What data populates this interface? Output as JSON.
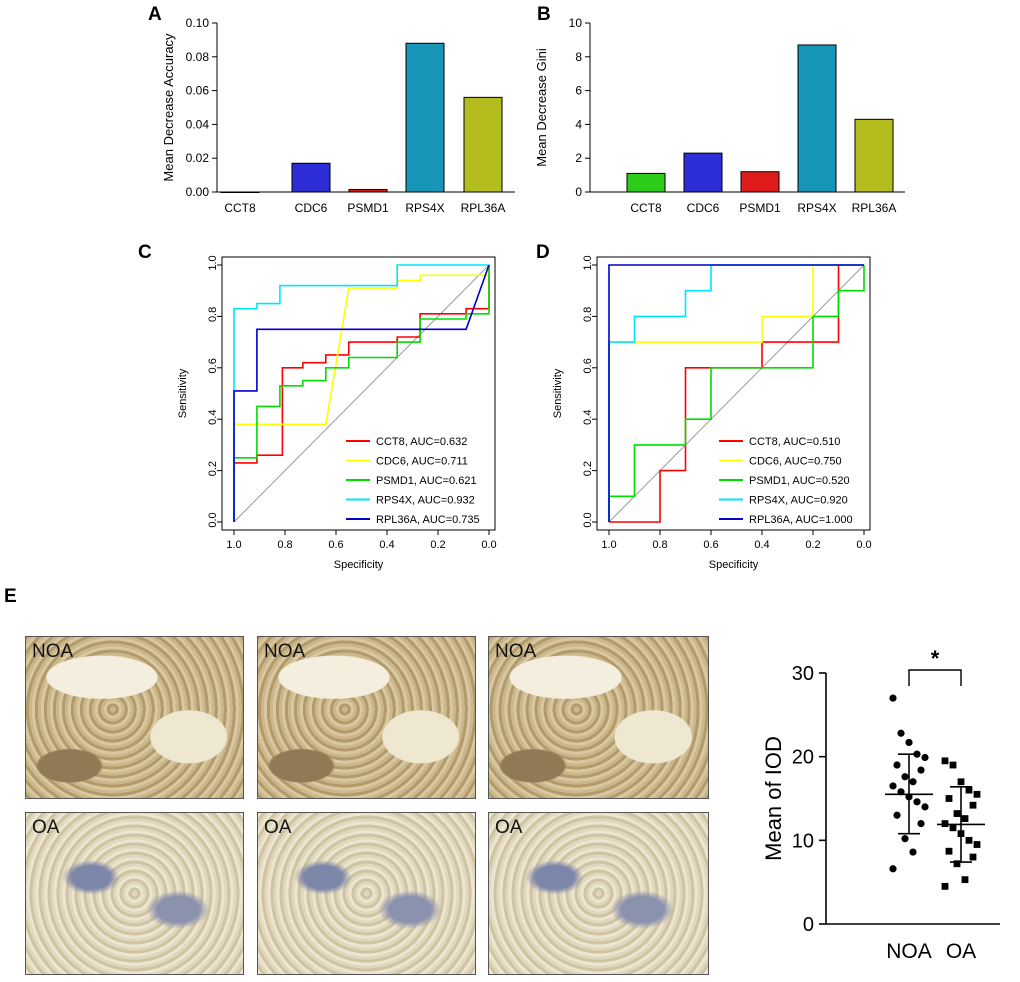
{
  "panels": {
    "a": "A",
    "b": "B",
    "c": "C",
    "d": "D",
    "e": "E"
  },
  "colors": {
    "green": "#2ecc1a",
    "blue": "#2d2dd6",
    "red": "#e01b1b",
    "teal": "#1796b8",
    "olive": "#b3bd1e"
  },
  "chart_data": [
    {
      "id": "A",
      "type": "bar",
      "categories": [
        "CCT8",
        "CDC6",
        "PSMD1",
        "RPS4X",
        "RPL36A"
      ],
      "values": [
        0.0,
        0.017,
        0.0015,
        0.088,
        0.056
      ],
      "colors": [
        "#2ecc1a",
        "#2d2dd6",
        "#e01b1b",
        "#1796b8",
        "#b3bd1e"
      ],
      "ylabel": "Mean Decrease Accuracy",
      "ylim": [
        0,
        0.1
      ],
      "yticks": [
        "0.00",
        "0.02",
        "0.04",
        "0.06",
        "0.08",
        "0.10"
      ]
    },
    {
      "id": "B",
      "type": "bar",
      "categories": [
        "CCT8",
        "CDC6",
        "PSMD1",
        "RPS4X",
        "RPL36A"
      ],
      "values": [
        1.1,
        2.3,
        1.2,
        8.7,
        4.3
      ],
      "colors": [
        "#2ecc1a",
        "#2d2dd6",
        "#e01b1b",
        "#1796b8",
        "#b3bd1e"
      ],
      "ylabel": "Mean Decrease Gini",
      "ylim": [
        0,
        10
      ],
      "yticks": [
        "0",
        "2",
        "4",
        "6",
        "8",
        "10"
      ]
    },
    {
      "id": "C",
      "type": "line",
      "xlabel": "Specificity",
      "ylabel": "Sensitivity",
      "xlim": [
        1.0,
        0.0
      ],
      "ylim": [
        0.0,
        1.0
      ],
      "ticks": [
        "1.0",
        "0.8",
        "0.6",
        "0.4",
        "0.2",
        "0.0"
      ],
      "yticks": [
        "0.0",
        "0.2",
        "0.4",
        "0.6",
        "0.8",
        "1.0"
      ],
      "series": [
        {
          "name": "CCT8, AUC=0.632",
          "color": "#ff0000",
          "points": [
            [
              1.0,
              0.0
            ],
            [
              1.0,
              0.23
            ],
            [
              0.91,
              0.23
            ],
            [
              0.91,
              0.26
            ],
            [
              0.81,
              0.26
            ],
            [
              0.81,
              0.3
            ],
            [
              0.81,
              0.6
            ],
            [
              0.73,
              0.6
            ],
            [
              0.73,
              0.62
            ],
            [
              0.64,
              0.62
            ],
            [
              0.64,
              0.65
            ],
            [
              0.55,
              0.65
            ],
            [
              0.55,
              0.7
            ],
            [
              0.36,
              0.7
            ],
            [
              0.36,
              0.72
            ],
            [
              0.27,
              0.72
            ],
            [
              0.27,
              0.81
            ],
            [
              0.09,
              0.81
            ],
            [
              0.09,
              0.83
            ],
            [
              0.0,
              0.83
            ],
            [
              0.0,
              1.0
            ]
          ]
        },
        {
          "name": "CDC6, AUC=0.711",
          "color": "#ffff00",
          "points": [
            [
              1.0,
              0.0
            ],
            [
              1.0,
              0.38
            ],
            [
              0.64,
              0.38
            ],
            [
              0.55,
              0.91
            ],
            [
              0.36,
              0.91
            ],
            [
              0.36,
              0.94
            ],
            [
              0.27,
              0.94
            ],
            [
              0.27,
              0.96
            ],
            [
              0.0,
              0.96
            ],
            [
              0.0,
              1.0
            ]
          ]
        },
        {
          "name": "PSMD1, AUC=0.621",
          "color": "#00dd00",
          "points": [
            [
              1.0,
              0.0
            ],
            [
              1.0,
              0.25
            ],
            [
              0.91,
              0.25
            ],
            [
              0.91,
              0.45
            ],
            [
              0.82,
              0.45
            ],
            [
              0.82,
              0.53
            ],
            [
              0.73,
              0.53
            ],
            [
              0.73,
              0.55
            ],
            [
              0.64,
              0.55
            ],
            [
              0.64,
              0.6
            ],
            [
              0.55,
              0.6
            ],
            [
              0.55,
              0.64
            ],
            [
              0.36,
              0.64
            ],
            [
              0.36,
              0.7
            ],
            [
              0.27,
              0.7
            ],
            [
              0.27,
              0.79
            ],
            [
              0.09,
              0.79
            ],
            [
              0.09,
              0.81
            ],
            [
              0.0,
              0.81
            ],
            [
              0.0,
              0.85
            ],
            [
              0.0,
              1.0
            ]
          ]
        },
        {
          "name": "RPS4X, AUC=0.932",
          "color": "#00e5ff",
          "points": [
            [
              1.0,
              0.0
            ],
            [
              1.0,
              0.83
            ],
            [
              0.91,
              0.83
            ],
            [
              0.91,
              0.85
            ],
            [
              0.82,
              0.85
            ],
            [
              0.82,
              0.92
            ],
            [
              0.36,
              0.92
            ],
            [
              0.36,
              1.0
            ],
            [
              0.0,
              1.0
            ]
          ]
        },
        {
          "name": "RPL36A, AUC=0.735",
          "color": "#0000cc",
          "points": [
            [
              1.0,
              0.0
            ],
            [
              1.0,
              0.51
            ],
            [
              0.91,
              0.51
            ],
            [
              0.91,
              0.75
            ],
            [
              0.09,
              0.75
            ],
            [
              0.0,
              1.0
            ]
          ]
        }
      ]
    },
    {
      "id": "D",
      "type": "line",
      "xlabel": "Specificity",
      "ylabel": "Sensitivity",
      "xlim": [
        1.0,
        0.0
      ],
      "ylim": [
        0.0,
        1.0
      ],
      "ticks": [
        "1.0",
        "0.8",
        "0.6",
        "0.4",
        "0.2",
        "0.0"
      ],
      "yticks": [
        "0.0",
        "0.2",
        "0.4",
        "0.6",
        "0.8",
        "1.0"
      ],
      "series": [
        {
          "name": "CCT8, AUC=0.510",
          "color": "#ff0000",
          "points": [
            [
              1.0,
              0.0
            ],
            [
              0.8,
              0.0
            ],
            [
              0.8,
              0.2
            ],
            [
              0.7,
              0.2
            ],
            [
              0.7,
              0.6
            ],
            [
              0.4,
              0.6
            ],
            [
              0.4,
              0.7
            ],
            [
              0.1,
              0.7
            ],
            [
              0.1,
              1.0
            ],
            [
              0.0,
              1.0
            ]
          ]
        },
        {
          "name": "CDC6, AUC=0.750",
          "color": "#ffff00",
          "points": [
            [
              1.0,
              0.0
            ],
            [
              1.0,
              0.7
            ],
            [
              0.4,
              0.7
            ],
            [
              0.4,
              0.8
            ],
            [
              0.2,
              0.8
            ],
            [
              0.2,
              1.0
            ],
            [
              0.0,
              1.0
            ]
          ]
        },
        {
          "name": "PSMD1, AUC=0.520",
          "color": "#00dd00",
          "points": [
            [
              1.0,
              0.0
            ],
            [
              1.0,
              0.1
            ],
            [
              0.9,
              0.1
            ],
            [
              0.9,
              0.3
            ],
            [
              0.7,
              0.3
            ],
            [
              0.7,
              0.4
            ],
            [
              0.6,
              0.4
            ],
            [
              0.6,
              0.6
            ],
            [
              0.2,
              0.6
            ],
            [
              0.2,
              0.8
            ],
            [
              0.1,
              0.8
            ],
            [
              0.1,
              0.9
            ],
            [
              0.0,
              0.9
            ],
            [
              0.0,
              1.0
            ]
          ]
        },
        {
          "name": "RPS4X, AUC=0.920",
          "color": "#00e5ff",
          "points": [
            [
              1.0,
              0.0
            ],
            [
              1.0,
              0.7
            ],
            [
              0.9,
              0.7
            ],
            [
              0.9,
              0.8
            ],
            [
              0.7,
              0.8
            ],
            [
              0.7,
              0.9
            ],
            [
              0.6,
              0.9
            ],
            [
              0.6,
              1.0
            ],
            [
              0.0,
              1.0
            ]
          ]
        },
        {
          "name": "RPL36A, AUC=1.000",
          "color": "#0000cc",
          "points": [
            [
              1.0,
              0.0
            ],
            [
              1.0,
              1.0
            ],
            [
              0.0,
              1.0
            ]
          ]
        }
      ]
    },
    {
      "id": "E",
      "type": "scatter",
      "categories": [
        "NOA",
        "OA"
      ],
      "ylabel": "Mean of IOD",
      "ylim": [
        0,
        30
      ],
      "yticks": [
        "0",
        "10",
        "20",
        "30"
      ],
      "significance": "*",
      "groups": [
        {
          "name": "NOA",
          "marker": "circle",
          "mean": 15.5,
          "sd_low": 10.8,
          "sd_high": 20.3,
          "values": [
            27.0,
            22.8,
            21.7,
            20.3,
            19.9,
            19.0,
            18.4,
            17.6,
            17.0,
            16.5,
            15.8,
            15.2,
            14.6,
            14.0,
            13.0,
            12.0,
            10.2,
            8.6,
            6.6
          ]
        },
        {
          "name": "OA",
          "marker": "square",
          "mean": 11.9,
          "sd_low": 7.4,
          "sd_high": 16.4,
          "values": [
            19.5,
            19.0,
            17.0,
            16.0,
            15.5,
            15.0,
            14.2,
            13.2,
            12.6,
            12.0,
            11.5,
            10.8,
            10.0,
            9.5,
            8.7,
            8.0,
            7.2,
            5.3,
            4.5
          ]
        }
      ]
    }
  ],
  "micrographs": {
    "top_label": "NOA",
    "bottom_label": "OA"
  }
}
